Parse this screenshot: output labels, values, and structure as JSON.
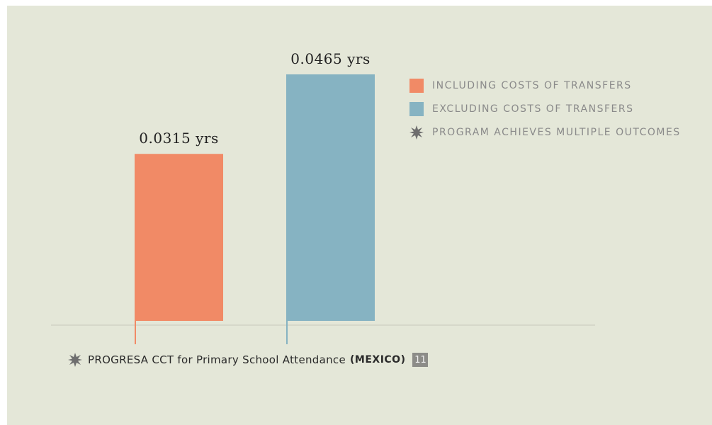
{
  "chart_data": {
    "type": "bar",
    "categories": [
      "Including costs of transfers",
      "Excluding costs of transfers"
    ],
    "values": [
      0.0315,
      0.0465
    ],
    "value_labels": [
      "0.0315 yrs",
      "0.0465 yrs"
    ],
    "colors": [
      "#f18a66",
      "#86b3c2"
    ],
    "ylim": [
      0,
      0.05
    ],
    "grid": false,
    "legend_position": "top-right",
    "legend": [
      {
        "label": "INCLUDING COSTS OF TRANSFERS",
        "color": "#f18a66",
        "marker": "square"
      },
      {
        "label": "EXCLUDING COSTS OF TRANSFERS",
        "color": "#86b3c2",
        "marker": "square"
      },
      {
        "label": "PROGRAM ACHIEVES MULTIPLE OUTCOMES",
        "color": "#6e6e6e",
        "marker": "star"
      }
    ]
  },
  "footer": {
    "title": "PROGRESA CCT for Primary School Attendance",
    "country": "(MEXICO)",
    "badge": "11"
  },
  "colors": {
    "background": "#e4e7d8",
    "axis": "#d6d8ca",
    "star": "#6e6e6e"
  }
}
